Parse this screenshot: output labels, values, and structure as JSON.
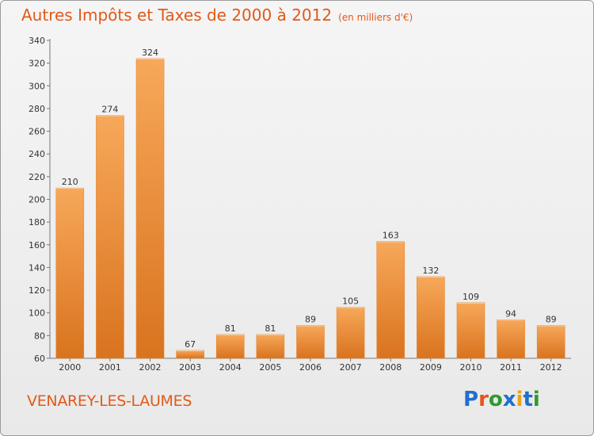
{
  "title": "Autres Impôts et Taxes de 2000 à 2012",
  "subtitle": "(en milliers d'€)",
  "town": "VENAREY-LES-LAUMES",
  "logo": {
    "text": "Proxiti",
    "letters": [
      "P",
      "r",
      "o",
      "x",
      "i",
      "t",
      "i"
    ],
    "colors": [
      "#1f6fd0",
      "#e8541c",
      "#2f9a2f",
      "#1f6fd0",
      "#e8a21c",
      "#1f6fd0",
      "#2f9a2f"
    ]
  },
  "colors": {
    "accent": "#e05a1a",
    "bar_top": "#f7a85a",
    "bar_bottom": "#d9731e"
  },
  "chart_data": {
    "type": "bar",
    "title": "Autres Impôts et Taxes de 2000 à 2012",
    "subtitle": "(en milliers d'€)",
    "xlabel": "",
    "ylabel": "",
    "categories": [
      "2000",
      "2001",
      "2002",
      "2003",
      "2004",
      "2005",
      "2006",
      "2007",
      "2008",
      "2009",
      "2010",
      "2011",
      "2012"
    ],
    "values": [
      210,
      274,
      324,
      67,
      81,
      81,
      89,
      105,
      163,
      132,
      109,
      94,
      89
    ],
    "ylim": [
      60,
      340
    ],
    "yticks": [
      60,
      80,
      100,
      120,
      140,
      160,
      180,
      200,
      220,
      240,
      260,
      280,
      300,
      320,
      340
    ],
    "grid": false,
    "data_labels": true
  }
}
